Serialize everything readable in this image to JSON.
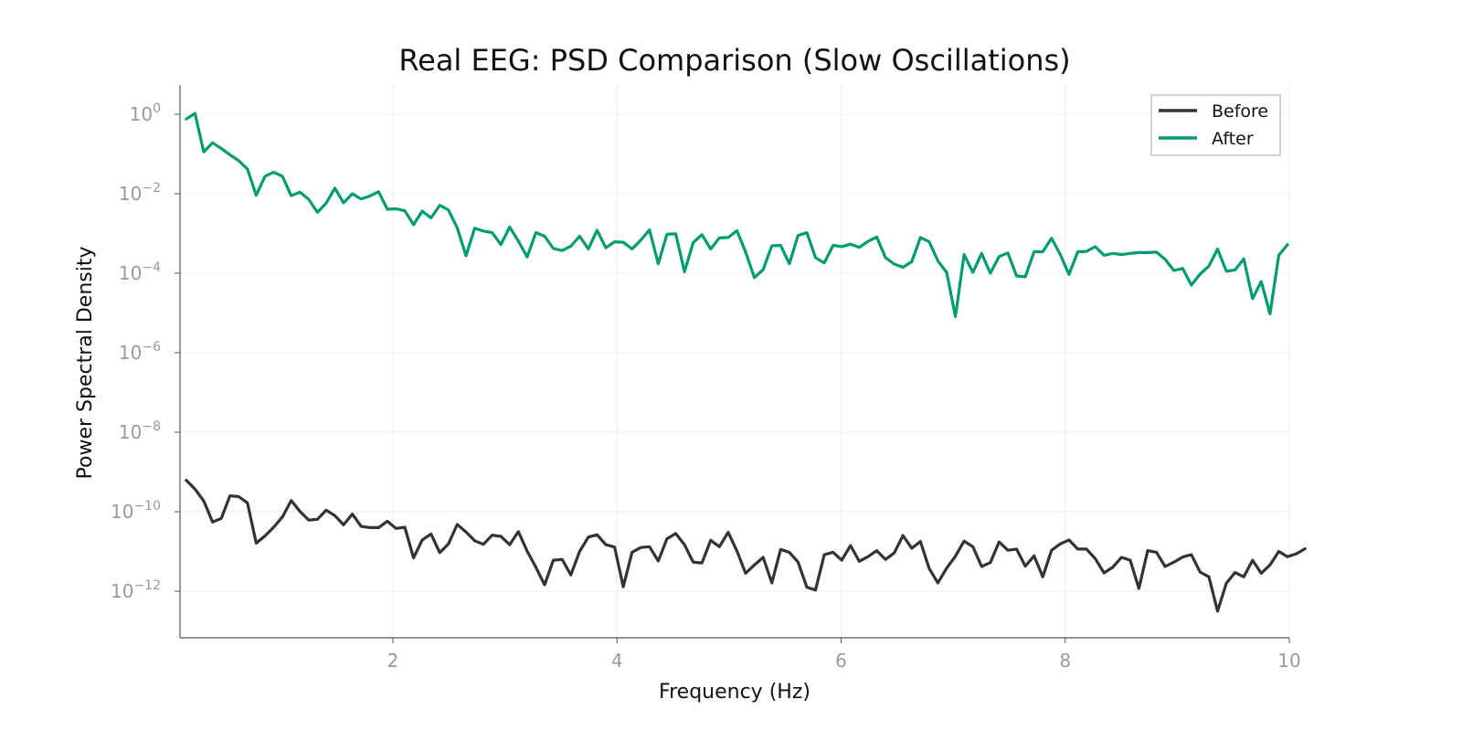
{
  "chart_data": {
    "type": "line",
    "title": "Real EEG: PSD Comparison (Slow Oscillations)",
    "xlabel": "Frequency (Hz)",
    "ylabel": "Power Spectral Density",
    "x_scale": "linear",
    "y_scale": "log",
    "xlim": [
      0.1,
      10
    ],
    "ylim_log10": [
      -13.2,
      0.7
    ],
    "x_ticks": [
      2,
      4,
      6,
      8,
      10
    ],
    "x_tick_labels": [
      "2",
      "4",
      "6",
      "8",
      "10"
    ],
    "y_ticks_log10": [
      0,
      -2,
      -4,
      -6,
      -8,
      -10,
      -12
    ],
    "y_tick_bases": [
      "10",
      "10",
      "10",
      "10",
      "10",
      "10",
      "10"
    ],
    "y_tick_exponents": [
      "0",
      "−2",
      "−4",
      "−6",
      "−8",
      "−10",
      "−12"
    ],
    "grid": true,
    "legend_position": "top-right",
    "x_start": 0.156,
    "x_step": 0.078,
    "series": [
      {
        "name": "Before",
        "color": "#333333",
        "log10_values": [
          -9.21,
          -9.43,
          -9.73,
          -10.26,
          -10.17,
          -9.6,
          -9.62,
          -9.78,
          -10.79,
          -10.61,
          -10.39,
          -10.13,
          -9.72,
          -9.99,
          -10.21,
          -10.19,
          -9.96,
          -10.1,
          -10.33,
          -10.06,
          -10.37,
          -10.4,
          -10.4,
          -10.24,
          -10.42,
          -10.39,
          -11.16,
          -10.71,
          -10.56,
          -11.03,
          -10.81,
          -10.32,
          -10.51,
          -10.73,
          -10.82,
          -10.59,
          -10.62,
          -10.83,
          -10.5,
          -10.99,
          -11.4,
          -11.84,
          -11.22,
          -11.2,
          -11.59,
          -11.0,
          -10.64,
          -10.58,
          -10.83,
          -10.89,
          -11.89,
          -11.02,
          -10.9,
          -10.88,
          -11.24,
          -10.68,
          -10.55,
          -10.83,
          -11.27,
          -11.29,
          -10.72,
          -10.88,
          -10.52,
          -10.99,
          -11.55,
          -11.34,
          -11.15,
          -11.79,
          -10.95,
          -11.02,
          -11.27,
          -11.9,
          -11.97,
          -11.08,
          -11.02,
          -11.22,
          -10.85,
          -11.25,
          -11.13,
          -10.98,
          -11.2,
          -11.04,
          -10.6,
          -10.92,
          -10.75,
          -11.43,
          -11.79,
          -11.42,
          -11.12,
          -10.74,
          -10.88,
          -11.38,
          -11.28,
          -10.76,
          -10.97,
          -10.94,
          -11.37,
          -11.11,
          -11.64,
          -10.97,
          -10.81,
          -10.71,
          -10.94,
          -10.94,
          -11.18,
          -11.54,
          -11.4,
          -11.15,
          -11.22,
          -11.93,
          -10.98,
          -11.02,
          -11.38,
          -11.27,
          -11.14,
          -11.08,
          -11.52,
          -11.64,
          -12.5,
          -11.8,
          -11.53,
          -11.64,
          -11.22,
          -11.55,
          -11.34,
          -11.0,
          -11.13,
          -11.06,
          -10.93
        ]
      },
      {
        "name": "After",
        "color": "#009b70",
        "log10_values": [
          -0.12,
          0.02,
          -0.95,
          -0.72,
          -0.86,
          -1.02,
          -1.17,
          -1.38,
          -2.04,
          -1.56,
          -1.46,
          -1.56,
          -2.05,
          -1.96,
          -2.14,
          -2.47,
          -2.24,
          -1.86,
          -2.23,
          -2.0,
          -2.13,
          -2.06,
          -1.95,
          -2.39,
          -2.38,
          -2.43,
          -2.78,
          -2.44,
          -2.61,
          -2.29,
          -2.41,
          -2.86,
          -3.56,
          -2.87,
          -2.94,
          -2.98,
          -3.28,
          -2.84,
          -3.19,
          -3.59,
          -2.98,
          -3.07,
          -3.38,
          -3.43,
          -3.32,
          -3.07,
          -3.39,
          -2.92,
          -3.36,
          -3.21,
          -3.22,
          -3.39,
          -3.17,
          -2.91,
          -3.76,
          -3.02,
          -3.01,
          -3.96,
          -3.23,
          -3.03,
          -3.39,
          -3.11,
          -3.1,
          -2.93,
          -3.47,
          -4.11,
          -3.91,
          -3.31,
          -3.3,
          -3.76,
          -3.05,
          -2.98,
          -3.61,
          -3.74,
          -3.3,
          -3.33,
          -3.27,
          -3.35,
          -3.2,
          -3.09,
          -3.61,
          -3.77,
          -3.85,
          -3.71,
          -3.1,
          -3.21,
          -3.69,
          -3.98,
          -5.09,
          -3.53,
          -3.98,
          -3.5,
          -4.0,
          -3.58,
          -3.49,
          -4.07,
          -4.09,
          -3.46,
          -3.46,
          -3.12,
          -3.53,
          -4.03,
          -3.46,
          -3.45,
          -3.33,
          -3.55,
          -3.5,
          -3.53,
          -3.5,
          -3.48,
          -3.48,
          -3.47,
          -3.65,
          -3.93,
          -3.88,
          -4.3,
          -4.02,
          -3.82,
          -3.39,
          -3.95,
          -3.92,
          -3.64,
          -4.64,
          -4.21,
          -5.02,
          -3.55,
          -3.28
        ]
      }
    ]
  }
}
